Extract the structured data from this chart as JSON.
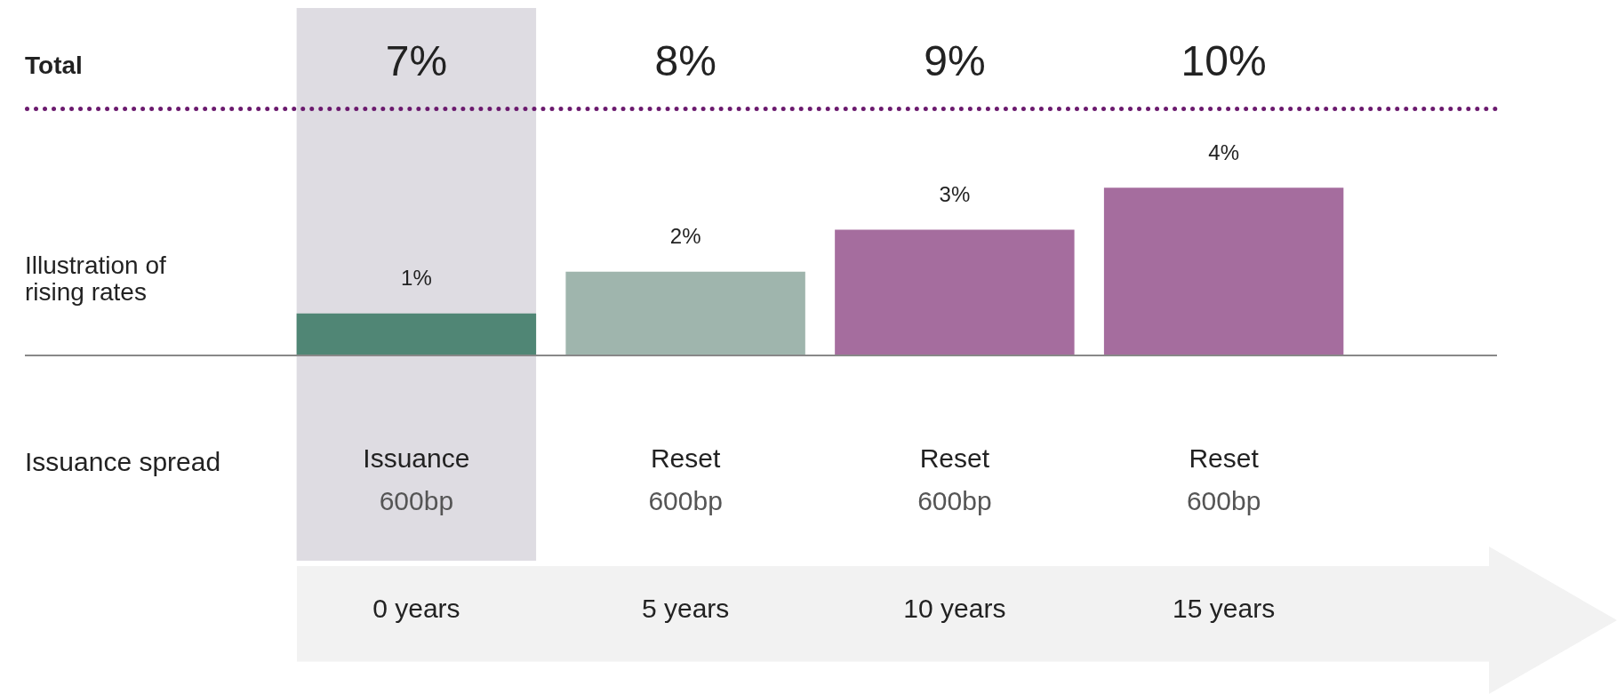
{
  "chart_data": {
    "type": "bar",
    "categories": [
      "0 years",
      "5 years",
      "10 years",
      "15 years"
    ],
    "values": [
      1,
      2,
      3,
      4
    ],
    "colors": [
      "#508675",
      "#9fb5ad",
      "#a56d9e",
      "#a56d9e"
    ],
    "value_labels": [
      "1%",
      "2%",
      "3%",
      "4%"
    ],
    "ylabel": "Illustration of rising rates",
    "bands": [
      {
        "axis": "x",
        "from": "0 years",
        "to": "0 years",
        "color": "#dedce2"
      }
    ],
    "annotations": [
      "Total",
      "7%",
      "8%",
      "9%",
      "10%",
      "Issuance spread",
      "Issuance",
      "600bp",
      "Reset",
      "600bp",
      "Reset",
      "600bp",
      "Reset",
      "600bp"
    ],
    "legend": false,
    "grid": false
  }
}
